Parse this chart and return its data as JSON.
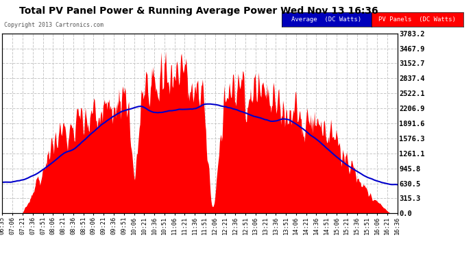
{
  "title": "Total PV Panel Power & Running Average Power Wed Nov 13 16:36",
  "copyright": "Copyright 2013 Cartronics.com",
  "legend_avg": "Average  (DC Watts)",
  "legend_pv": "PV Panels  (DC Watts)",
  "bg_color": "#ffffff",
  "plot_bg_color": "#ffffff",
  "grid_color": "#c8c8c8",
  "bar_color": "#ff0000",
  "line_color": "#0000cc",
  "ylim": [
    0.0,
    3783.2
  ],
  "yticks": [
    0.0,
    315.3,
    630.5,
    945.8,
    1261.1,
    1576.3,
    1891.6,
    2206.9,
    2522.1,
    2837.4,
    3152.7,
    3467.9,
    3783.2
  ],
  "time_labels": [
    "06:35",
    "07:06",
    "07:21",
    "07:36",
    "07:51",
    "08:06",
    "08:21",
    "08:36",
    "08:51",
    "09:06",
    "09:21",
    "09:36",
    "09:51",
    "10:06",
    "10:21",
    "10:36",
    "10:51",
    "11:06",
    "11:21",
    "11:36",
    "11:51",
    "12:06",
    "12:21",
    "12:36",
    "12:51",
    "13:06",
    "13:21",
    "13:36",
    "13:51",
    "14:06",
    "14:21",
    "14:36",
    "14:51",
    "15:06",
    "15:21",
    "15:36",
    "15:51",
    "16:06",
    "16:21",
    "16:36"
  ],
  "legend_avg_bg": "#0000bb",
  "legend_pv_bg": "#ff0000"
}
